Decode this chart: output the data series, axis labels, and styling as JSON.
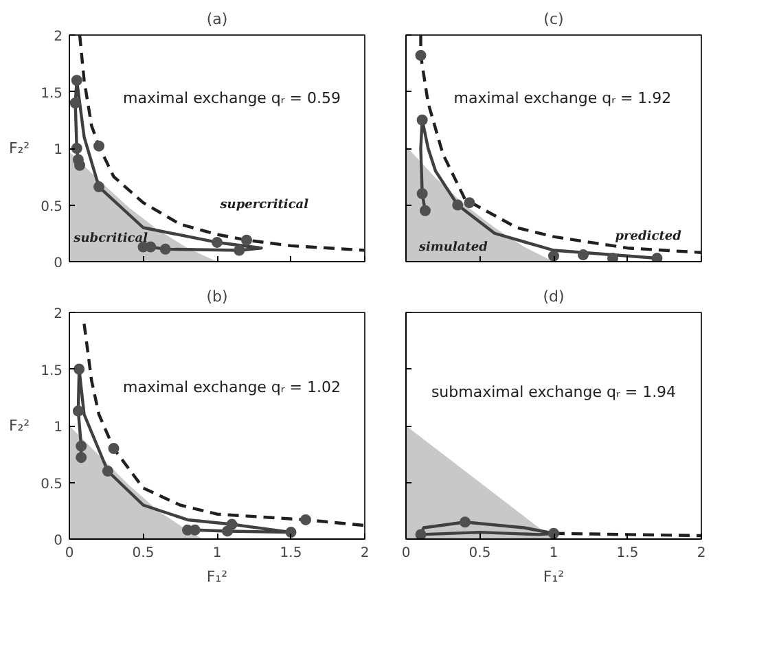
{
  "chart_data": [
    {
      "type": "line",
      "title": "(a)",
      "ylabel": "F₂²",
      "xlim": [
        0,
        2
      ],
      "ylim": [
        0,
        2
      ],
      "xticks": [
        0,
        0.5,
        1,
        1.5,
        2
      ],
      "yticks": [
        0,
        0.5,
        1,
        1.5,
        2
      ],
      "tick_labels": "y",
      "grid": false,
      "series": [
        {
          "type": "area",
          "color": "#c8c8c8",
          "x": [
            0,
            0.2,
            0.4,
            0.6,
            0.8,
            1.0
          ],
          "values": [
            0.97,
            0.72,
            0.48,
            0.28,
            0.12,
            0
          ]
        },
        {
          "line_style": "solid",
          "color": "#404040",
          "x": [
            0.07,
            0.06,
            0.05,
            0.04,
            0.05,
            0.1,
            0.2,
            0.5,
            1.0,
            1.3,
            1.15,
            0.65,
            0.55
          ],
          "values": [
            0.85,
            0.9,
            1.0,
            1.4,
            1.6,
            1.1,
            0.66,
            0.3,
            0.17,
            0.12,
            0.1,
            0.11,
            0.13
          ]
        },
        {
          "line_style": "dashed",
          "color": "#202020",
          "x": [
            0.07,
            0.1,
            0.15,
            0.2,
            0.3,
            0.5,
            0.75,
            1.0,
            1.2,
            1.5,
            2.0
          ],
          "values": [
            2.0,
            1.6,
            1.2,
            1.02,
            0.75,
            0.52,
            0.33,
            0.24,
            0.19,
            0.14,
            0.1
          ]
        },
        {
          "type": "scatter",
          "color": "#505050",
          "x": [
            0.05,
            0.04,
            0.05,
            0.06,
            0.07,
            0.2,
            0.2,
            0.5,
            0.55,
            0.65,
            1.0,
            1.15,
            1.2
          ],
          "values": [
            1.6,
            1.4,
            1.0,
            0.9,
            0.85,
            1.02,
            0.66,
            0.13,
            0.13,
            0.11,
            0.17,
            0.1,
            0.19
          ]
        }
      ],
      "annotations": [
        "maximal exchange qᵣ = 0.59",
        "supercritical",
        "subcritical"
      ]
    },
    {
      "type": "line",
      "title": "(c)",
      "xlim": [
        0,
        2
      ],
      "ylim": [
        0,
        2
      ],
      "xticks": [
        0,
        0.5,
        1,
        1.5,
        2
      ],
      "yticks": [
        0,
        0.5,
        1,
        1.5,
        2
      ],
      "tick_labels": false,
      "grid": false,
      "series": [
        {
          "type": "area",
          "color": "#c8c8c8",
          "x": [
            0,
            0.2,
            0.4,
            0.6,
            0.8,
            1.0
          ],
          "values": [
            1.02,
            0.74,
            0.5,
            0.3,
            0.13,
            0
          ]
        },
        {
          "line_style": "solid",
          "color": "#404040",
          "x": [
            0.13,
            0.11,
            0.1,
            0.11,
            0.15,
            0.2,
            0.35,
            0.6,
            1.0,
            1.7
          ],
          "values": [
            0.45,
            0.6,
            1.0,
            1.25,
            1.0,
            0.8,
            0.5,
            0.25,
            0.1,
            0.03
          ]
        },
        {
          "line_style": "dashed",
          "color": "#202020",
          "x": [
            0.1,
            0.1,
            0.15,
            0.25,
            0.4,
            0.75,
            1.0,
            1.5,
            2.0
          ],
          "values": [
            2.0,
            1.82,
            1.4,
            0.95,
            0.55,
            0.3,
            0.22,
            0.12,
            0.08
          ]
        },
        {
          "type": "scatter",
          "color": "#505050",
          "x": [
            0.1,
            0.11,
            0.11,
            0.13,
            0.35,
            0.43,
            1.0,
            1.2,
            1.4,
            1.7
          ],
          "values": [
            1.82,
            1.25,
            0.6,
            0.45,
            0.5,
            0.52,
            0.05,
            0.06,
            0.03,
            0.03
          ]
        }
      ],
      "annotations": [
        "maximal exchange qᵣ = 1.92",
        "predicted",
        "simulated"
      ]
    },
    {
      "type": "line",
      "title": "(b)",
      "xlabel": "F₁²",
      "ylabel": "F₂²",
      "xlim": [
        0,
        2
      ],
      "ylim": [
        0,
        2
      ],
      "xticks": [
        0,
        0.5,
        1,
        1.5,
        2
      ],
      "yticks": [
        0,
        0.5,
        1,
        1.5,
        2
      ],
      "grid": false,
      "series": [
        {
          "type": "area",
          "color": "#c8c8c8",
          "x": [
            0,
            0.2,
            0.4,
            0.6,
            0.75,
            0.9
          ],
          "values": [
            1.0,
            0.74,
            0.48,
            0.25,
            0.12,
            0
          ]
        },
        {
          "line_style": "solid",
          "color": "#404040",
          "x": [
            0.08,
            0.08,
            0.06,
            0.066,
            0.1,
            0.26,
            0.5,
            0.8,
            1.1,
            1.5,
            1.07,
            0.85,
            0.8
          ],
          "values": [
            0.72,
            0.82,
            1.13,
            1.5,
            1.1,
            0.6,
            0.3,
            0.17,
            0.13,
            0.06,
            0.07,
            0.08,
            0.08
          ]
        },
        {
          "line_style": "dashed",
          "color": "#202020",
          "x": [
            0.1,
            0.15,
            0.2,
            0.3,
            0.5,
            0.75,
            1.0,
            1.6,
            2.0
          ],
          "values": [
            1.9,
            1.4,
            1.1,
            0.8,
            0.45,
            0.3,
            0.22,
            0.17,
            0.12
          ]
        },
        {
          "type": "scatter",
          "color": "#505050",
          "x": [
            0.066,
            0.06,
            0.08,
            0.08,
            0.26,
            0.3,
            0.8,
            0.85,
            1.07,
            1.1,
            1.5,
            1.6
          ],
          "values": [
            1.5,
            1.13,
            0.82,
            0.72,
            0.6,
            0.8,
            0.08,
            0.08,
            0.07,
            0.13,
            0.06,
            0.17
          ]
        }
      ],
      "annotations": [
        "maximal exchange qᵣ = 1.02"
      ]
    },
    {
      "type": "line",
      "title": "(d)",
      "xlabel": "F₁²",
      "xlim": [
        0,
        2
      ],
      "ylim": [
        0,
        2
      ],
      "xticks": [
        0,
        0.5,
        1,
        1.5,
        2
      ],
      "yticks": [
        0,
        0.5,
        1,
        1.5,
        2
      ],
      "tick_labels": "x",
      "grid": false,
      "series": [
        {
          "type": "area",
          "color": "#c8c8c8",
          "x": [
            0,
            1.0
          ],
          "values": [
            1.0,
            0
          ]
        },
        {
          "line_style": "solid",
          "color": "#404040",
          "x": [
            0.1,
            0.12,
            0.4,
            0.8,
            1.0
          ],
          "values": [
            0.04,
            0.1,
            0.15,
            0.1,
            0.05
          ]
        },
        {
          "line_style": "solid",
          "color": "#404040",
          "x": [
            0.1,
            0.5,
            0.9,
            1.0
          ],
          "values": [
            0.04,
            0.06,
            0.04,
            0.05
          ]
        },
        {
          "line_style": "dashed",
          "color": "#202020",
          "x": [
            1.0,
            1.5,
            2.0
          ],
          "values": [
            0.05,
            0.04,
            0.03
          ]
        },
        {
          "type": "scatter",
          "color": "#505050",
          "x": [
            0.1,
            0.4,
            1.0
          ],
          "values": [
            0.04,
            0.15,
            0.05
          ]
        }
      ],
      "annotations": [
        "submaximal exchange qᵣ = 1.94"
      ]
    }
  ]
}
